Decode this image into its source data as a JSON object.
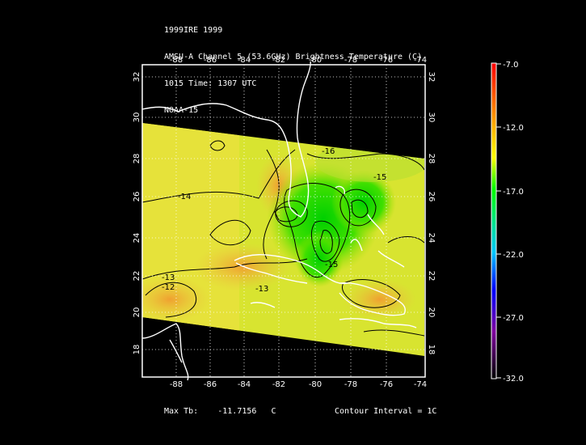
{
  "header": {
    "line1": "1999IRE 1999",
    "line2": "AMSU-A Channel 5 (53.6GHz) Brightness Temperature (C)",
    "line3": "1015 Time: 1307 UTC",
    "line4": "NOAA-15"
  },
  "axes": {
    "lon_ticks": [
      "-88",
      "-86",
      "-84",
      "-82",
      "-80",
      "-78",
      "-76",
      "-74"
    ],
    "lat_ticks": [
      "18",
      "20",
      "22",
      "24",
      "26",
      "28",
      "30",
      "32"
    ]
  },
  "contour_labels": [
    "-16",
    "-15",
    "-14",
    "-13",
    "-12",
    "-13",
    "-15"
  ],
  "colorbar": {
    "labels": [
      "-7.0",
      "-12.0",
      "-17.0",
      "-22.0",
      "-27.0",
      "-32.0"
    ],
    "colors": [
      "#ff0000",
      "#ff8c00",
      "#ffff00",
      "#00ff00",
      "#00c8ff",
      "#0000ff",
      "#8000a0",
      "#000000"
    ]
  },
  "footer": {
    "max_label": "Max Tb:",
    "max_value": "-11.7156",
    "max_unit": "C",
    "contour_interval": "Contour Interval = 1C"
  }
}
